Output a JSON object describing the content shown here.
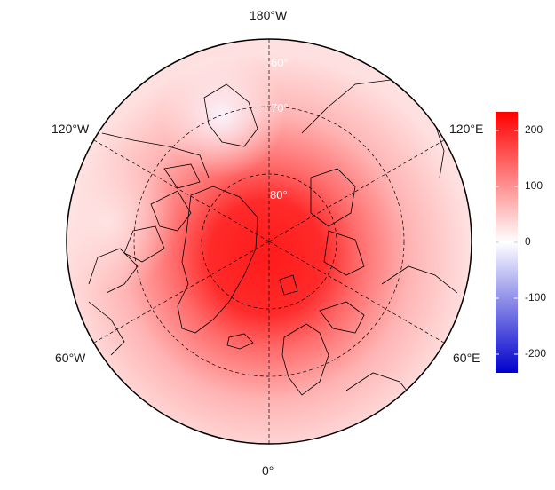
{
  "map": {
    "projection": "north-polar-stereographic",
    "field_description_colors": {
      "center_color": "#ff0000",
      "mid_color": "#ff9999",
      "light_color": "#ffe5e5",
      "neutral_color": "#ffffff",
      "negative_color": "#0000cc"
    },
    "longitude_labels": {
      "top": "180°W",
      "upper_left": "120°W",
      "upper_right": "120°E",
      "lower_left": "60°W",
      "lower_right": "60°E",
      "bottom": "0°"
    },
    "latitude_labels": [
      "60°",
      "70°",
      "80°"
    ]
  },
  "colorbar": {
    "ticks": [
      "200",
      "100",
      "0",
      "-100",
      "-200"
    ],
    "colors": {
      "top": "#ff0000",
      "middle": "#ffffff",
      "bottom": "#0000cc"
    }
  }
}
